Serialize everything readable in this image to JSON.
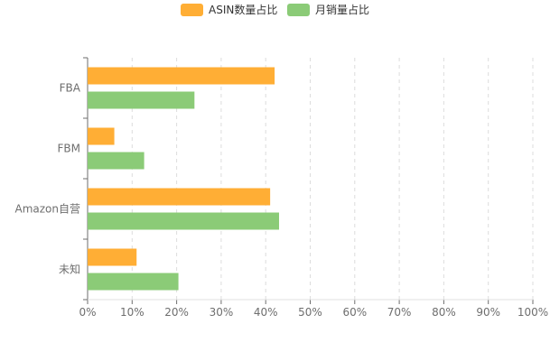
{
  "chart_data": {
    "type": "bar",
    "orientation": "horizontal",
    "categories": [
      "FBA",
      "FBM",
      "Amazon自营",
      "未知"
    ],
    "series": [
      {
        "name": "ASIN数量占比",
        "color": "#FFAE35",
        "values": [
          42,
          6,
          41,
          11
        ]
      },
      {
        "name": "月销量占比",
        "color": "#8BCB77",
        "values": [
          24,
          12.7,
          43,
          20.4
        ]
      }
    ],
    "xlim": [
      0,
      100
    ],
    "xticks": [
      "0%",
      "10%",
      "20%",
      "30%",
      "40%",
      "50%",
      "60%",
      "70%",
      "80%",
      "90%",
      "100%"
    ],
    "grid": true,
    "legend_position": "top-center"
  }
}
